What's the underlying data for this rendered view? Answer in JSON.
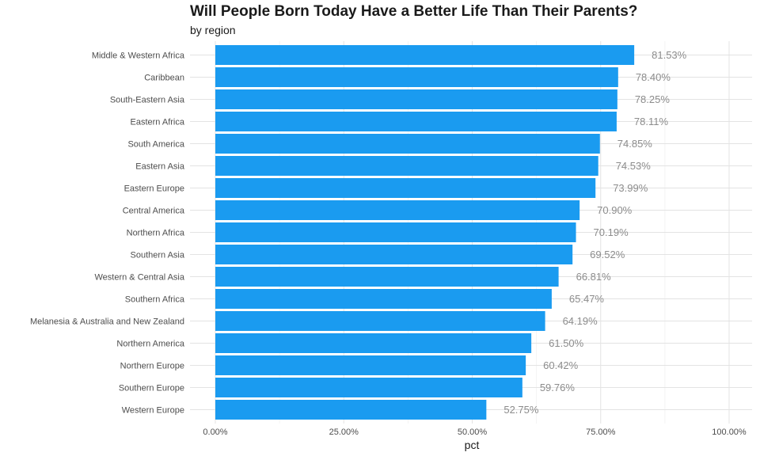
{
  "chart_data": {
    "type": "bar",
    "orientation": "horizontal",
    "title": "Will People Born Today Have a Better Life Than Their Parents?",
    "subtitle": "by region",
    "xlabel": "pct",
    "ylabel": "",
    "xlim": [
      0,
      1
    ],
    "x_ticks": [
      0,
      0.25,
      0.5,
      0.75,
      1.0
    ],
    "x_tick_labels": [
      "0.00%",
      "25.00%",
      "50.00%",
      "75.00%",
      "100.00%"
    ],
    "grid": true,
    "legend": "none",
    "bar_color": "#1a9bf0",
    "label_color": "#8c8c8c",
    "categories": [
      "Middle & Western Africa",
      "Caribbean",
      "South-Eastern Asia",
      "Eastern Africa",
      "South America",
      "Eastern Asia",
      "Eastern Europe",
      "Central America",
      "Northern Africa",
      "Southern Asia",
      "Western & Central Asia",
      "Southern Africa",
      "Melanesia & Australia and New Zealand",
      "Northern America",
      "Northern Europe",
      "Southern Europe",
      "Western Europe"
    ],
    "values": [
      0.8153,
      0.784,
      0.7825,
      0.7811,
      0.7485,
      0.7453,
      0.7399,
      0.709,
      0.7019,
      0.6952,
      0.6681,
      0.6547,
      0.6419,
      0.615,
      0.6042,
      0.5976,
      0.5275
    ],
    "data_labels": [
      "81.53%",
      "78.40%",
      "78.25%",
      "78.11%",
      "74.85%",
      "74.53%",
      "73.99%",
      "70.90%",
      "70.19%",
      "69.52%",
      "66.81%",
      "65.47%",
      "64.19%",
      "61.50%",
      "60.42%",
      "59.76%",
      "52.75%"
    ]
  }
}
